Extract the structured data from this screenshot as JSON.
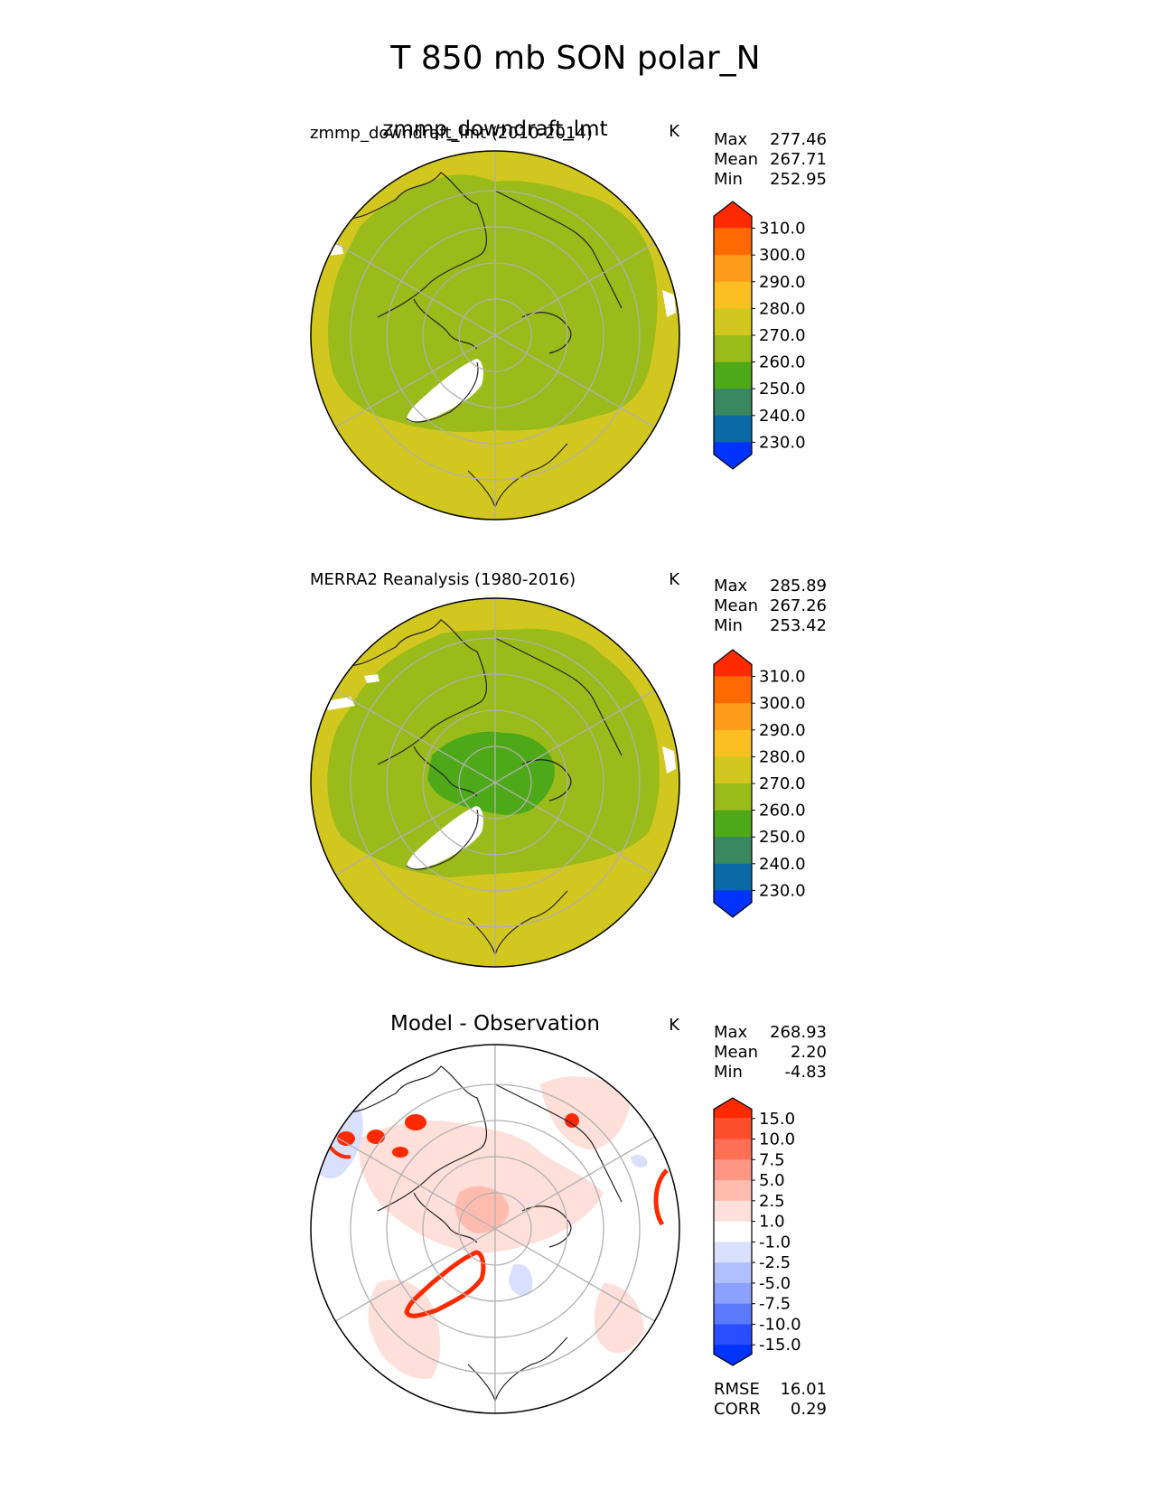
{
  "figure": {
    "title": "T 850 mb SON polar_N"
  },
  "chart_data": [
    {
      "type": "heatmap",
      "projection": "north-polar-stereographic",
      "overlap_title": "zmmp_downdraft_lmt",
      "left_label": "zmmp_downdraft_lmt (2010-2014)",
      "units": "K",
      "stats": [
        {
          "name": "Max",
          "value": "277.46"
        },
        {
          "name": "Mean",
          "value": "267.71"
        },
        {
          "name": "Min",
          "value": "252.95"
        }
      ],
      "colorbar": {
        "ticks": [
          "310.0",
          "300.0",
          "290.0",
          "280.0",
          "270.0",
          "260.0",
          "250.0",
          "240.0",
          "230.0"
        ],
        "colors": [
          "#ff2a00",
          "#ff6a00",
          "#ff9b1a",
          "#fbbf22",
          "#d2c71f",
          "#9bbb1a",
          "#4ea918",
          "#3a8860",
          "#0a6aa5",
          "#0033ff"
        ]
      },
      "zones": [
        {
          "name": "outer ring",
          "range": "270-280",
          "color": "#d2c71f"
        },
        {
          "name": "interior",
          "range": "260-270",
          "color": "#9bbb1a"
        },
        {
          "name": "missing (Greenland)",
          "color": "#ffffff"
        }
      ]
    },
    {
      "type": "heatmap",
      "projection": "north-polar-stereographic",
      "left_label": "MERRA2 Reanalysis (1980-2016)",
      "units": "K",
      "stats": [
        {
          "name": "Max",
          "value": "285.89"
        },
        {
          "name": "Mean",
          "value": "267.26"
        },
        {
          "name": "Min",
          "value": "253.42"
        }
      ],
      "colorbar": {
        "ticks": [
          "310.0",
          "300.0",
          "290.0",
          "280.0",
          "270.0",
          "260.0",
          "250.0",
          "240.0",
          "230.0"
        ],
        "colors": [
          "#ff2a00",
          "#ff6a00",
          "#ff9b1a",
          "#fbbf22",
          "#d2c71f",
          "#9bbb1a",
          "#4ea918",
          "#3a8860",
          "#0a6aa5",
          "#0033ff"
        ]
      },
      "zones": [
        {
          "name": "outer ring",
          "range": "270-280",
          "color": "#d2c71f"
        },
        {
          "name": "interior",
          "range": "260-270",
          "color": "#9bbb1a"
        },
        {
          "name": "polar core",
          "range": "250-260",
          "color": "#4ea918"
        },
        {
          "name": "missing (Greenland)",
          "color": "#ffffff"
        }
      ]
    },
    {
      "type": "heatmap",
      "projection": "north-polar-stereographic",
      "title": "Model - Observation",
      "units": "K",
      "stats": [
        {
          "name": "Max",
          "value": "268.93"
        },
        {
          "name": "Mean",
          "value": "2.20"
        },
        {
          "name": "Min",
          "value": "-4.83"
        }
      ],
      "colorbar": {
        "ticks": [
          "15.0",
          "10.0",
          "7.5",
          "5.0",
          "2.5",
          "1.0",
          "-1.0",
          "-2.5",
          "-5.0",
          "-7.5",
          "-10.0",
          "-15.0"
        ],
        "colors": [
          "#ff2a00",
          "#ff4e2e",
          "#ff6f55",
          "#ff9683",
          "#ffbcae",
          "#ffdfd9",
          "#ffffff",
          "#d9dfff",
          "#b0c0ff",
          "#8aa1ff",
          "#5a7aff",
          "#2a4dff",
          "#0033ff"
        ]
      },
      "zones": [
        {
          "name": "mostly +1 to +2.5",
          "color": "#ffdfd9"
        },
        {
          "name": "+2.5 to +5",
          "color": "#ffbcae"
        },
        {
          "name": "-1 to -2.5",
          "color": "#d9dfff"
        },
        {
          "name": "> +15 (Greenland edge, mountains)",
          "color": "#ff2a00"
        }
      ],
      "extra_stats": [
        {
          "name": "RMSE",
          "value": "16.01"
        },
        {
          "name": "CORR",
          "value": "0.29"
        }
      ]
    }
  ]
}
